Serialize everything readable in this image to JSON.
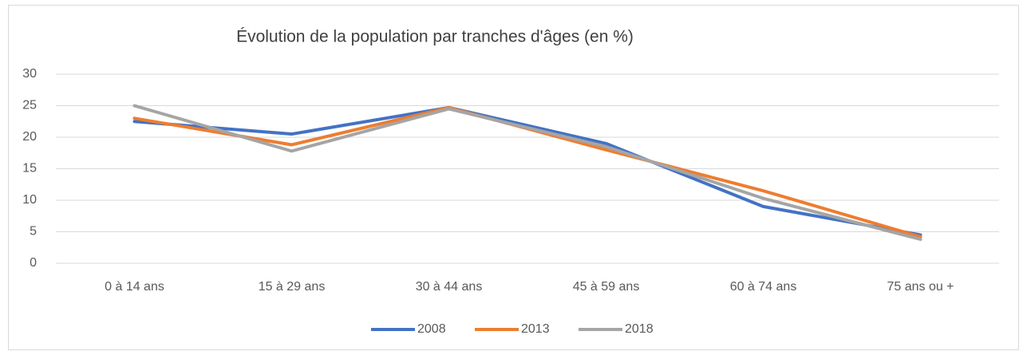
{
  "chart_data": {
    "type": "line",
    "title": "Évolution de la population par tranches d'âges (en %)",
    "categories": [
      "0 à 14 ans",
      "15 à 29 ans",
      "30 à 44 ans",
      "45 à 59 ans",
      "60 à 74 ans",
      "75 ans ou +"
    ],
    "series": [
      {
        "name": "2008",
        "color": "#4472c4",
        "values": [
          22.5,
          20.5,
          24.7,
          19,
          9,
          4.5
        ]
      },
      {
        "name": "2013",
        "color": "#ed7d31",
        "values": [
          23,
          18.8,
          24.7,
          18,
          11.5,
          4.2
        ]
      },
      {
        "name": "2018",
        "color": "#a5a5a5",
        "values": [
          25,
          17.8,
          24.5,
          18.5,
          10.3,
          3.8
        ]
      }
    ],
    "ylim": [
      0,
      30
    ],
    "yticks": [
      0,
      5,
      10,
      15,
      20,
      25,
      30
    ],
    "grid": true,
    "legend": "bottom"
  }
}
